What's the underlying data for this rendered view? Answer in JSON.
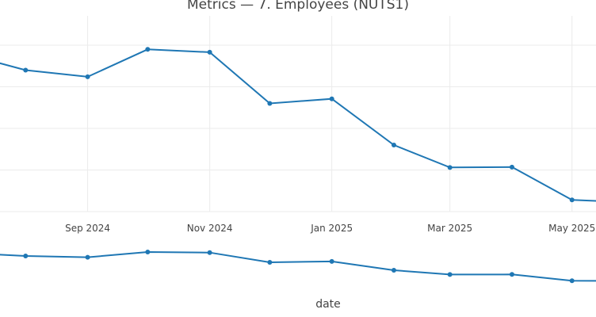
{
  "chart_data": {
    "type": "line",
    "title": "Metrics — 7. Employees (NUTS1)",
    "xlabel": "date",
    "ylabel": "",
    "x_ticks": [
      "Sep 2024",
      "Nov 2024",
      "Jan 2025",
      "Mar 2025",
      "May 2025"
    ],
    "x": [
      "2024-07-01",
      "2024-08-01",
      "2024-09-01",
      "2024-10-01",
      "2024-11-01",
      "2024-12-01",
      "2025-01-01",
      "2025-02-01",
      "2025-03-01",
      "2025-04-01",
      "2025-05-01",
      "2025-06-01"
    ],
    "xlim": [
      "2024-07-01",
      "2025-06-01"
    ],
    "ylim": [
      0,
      4
    ],
    "grid": true,
    "color": "#1f77b4",
    "series": [
      {
        "values": [
          3.8,
          3.4,
          3.24,
          3.9,
          3.83,
          2.6,
          2.71,
          1.6,
          1.06,
          1.07,
          0.28,
          0.22
        ]
      }
    ],
    "rangeslider": true
  }
}
